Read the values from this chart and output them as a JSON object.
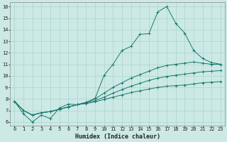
{
  "xlabel": "Humidex (Indice chaleur)",
  "bg_color": "#cce9e5",
  "grid_color": "#aad4cf",
  "line_color": "#1a7a6e",
  "xlim_min": -0.5,
  "xlim_max": 23.5,
  "ylim_min": 5.7,
  "ylim_max": 16.4,
  "xticks": [
    0,
    1,
    2,
    3,
    4,
    5,
    6,
    7,
    8,
    9,
    10,
    11,
    12,
    13,
    14,
    15,
    16,
    17,
    18,
    19,
    20,
    21,
    22,
    23
  ],
  "yticks": [
    6,
    7,
    8,
    9,
    10,
    11,
    12,
    13,
    14,
    15,
    16
  ],
  "line1_x": [
    0,
    1,
    2,
    3,
    4,
    5,
    6,
    7,
    8,
    9,
    10,
    11,
    12,
    13,
    14,
    15,
    16,
    17,
    18,
    19,
    20,
    21,
    22,
    23
  ],
  "line1_y": [
    7.8,
    6.7,
    6.0,
    6.6,
    6.3,
    7.2,
    7.55,
    7.5,
    7.7,
    8.05,
    10.05,
    11.0,
    12.2,
    12.55,
    13.6,
    13.65,
    15.55,
    16.0,
    14.55,
    13.7,
    12.2,
    11.5,
    11.15,
    11.0
  ],
  "line2_x": [
    0,
    1,
    2,
    3,
    4,
    5,
    6,
    7,
    8,
    9,
    10,
    11,
    12,
    13,
    14,
    15,
    16,
    17,
    18,
    19,
    20,
    21,
    22,
    23
  ],
  "line2_y": [
    7.8,
    7.0,
    6.6,
    6.8,
    6.9,
    7.1,
    7.3,
    7.5,
    7.7,
    8.0,
    8.5,
    9.0,
    9.4,
    9.8,
    10.1,
    10.4,
    10.7,
    10.9,
    11.0,
    11.1,
    11.2,
    11.1,
    11.0,
    11.0
  ],
  "line3_x": [
    0,
    1,
    2,
    3,
    4,
    5,
    6,
    7,
    8,
    9,
    10,
    11,
    12,
    13,
    14,
    15,
    16,
    17,
    18,
    19,
    20,
    21,
    22,
    23
  ],
  "line3_y": [
    7.8,
    7.0,
    6.6,
    6.8,
    6.9,
    7.1,
    7.3,
    7.5,
    7.65,
    7.85,
    8.15,
    8.5,
    8.8,
    9.1,
    9.35,
    9.6,
    9.8,
    9.95,
    10.05,
    10.15,
    10.25,
    10.35,
    10.4,
    10.45
  ],
  "line4_x": [
    0,
    1,
    2,
    3,
    4,
    5,
    6,
    7,
    8,
    9,
    10,
    11,
    12,
    13,
    14,
    15,
    16,
    17,
    18,
    19,
    20,
    21,
    22,
    23
  ],
  "line4_y": [
    7.8,
    7.0,
    6.6,
    6.8,
    6.9,
    7.1,
    7.3,
    7.5,
    7.6,
    7.75,
    7.95,
    8.15,
    8.35,
    8.55,
    8.7,
    8.85,
    9.0,
    9.1,
    9.15,
    9.2,
    9.3,
    9.4,
    9.45,
    9.5
  ]
}
